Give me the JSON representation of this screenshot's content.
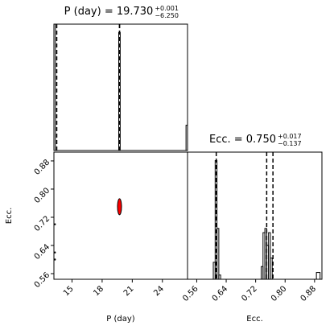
{
  "chart_data": [
    {
      "type": "histogram",
      "title": "P (day) = 19.730",
      "title_sup": "+0.001",
      "title_sub": "−6.250",
      "bins": [
        13.2,
        13.35,
        19.65,
        19.8,
        26.35,
        26.5
      ],
      "counts": [
        150,
        0,
        140,
        0,
        30
      ],
      "xlim": [
        13.2,
        26.5
      ],
      "ylim": [
        0,
        150
      ],
      "quantiles": [
        13.48,
        19.73,
        19.731
      ],
      "color": "#000000"
    },
    {
      "type": "scatter",
      "x_label": "P (day)",
      "y_label": "Ecc.",
      "x": [
        13.3,
        13.3,
        13.3,
        19.73,
        19.73,
        19.73
      ],
      "y": [
        0.6,
        0.62,
        0.7,
        0.74,
        0.75,
        0.76
      ],
      "peak": {
        "x": 19.73,
        "y": 0.75,
        "color": "#ff0000"
      },
      "color": "#000000",
      "xlim": [
        13.2,
        26.5
      ],
      "ylim": [
        0.544,
        0.905
      ],
      "xticks": [
        15,
        18,
        21,
        24
      ],
      "yticks": [
        0.56,
        0.64,
        0.72,
        {
          "value": 0.8,
          "label": "0.80"
        },
        0.88
      ]
    },
    {
      "type": "histogram",
      "title": "Ecc. = 0.750",
      "title_sup": "+0.017",
      "title_sub": "−0.137",
      "x_label": "Ecc.",
      "bins": [
        0.535,
        0.605,
        0.61,
        0.615,
        0.62,
        0.625,
        0.735,
        0.74,
        0.745,
        0.75,
        0.755,
        0.76,
        0.765,
        0.77,
        0.885,
        0.895,
        0.9
      ],
      "counts": [
        0,
        20,
        140,
        60,
        5,
        0,
        15,
        55,
        60,
        40,
        55,
        25,
        0,
        0,
        8,
        0
      ],
      "xlim": [
        0.535,
        0.9
      ],
      "ylim": [
        0,
        150
      ],
      "quantiles": [
        0.613,
        0.75,
        0.767
      ],
      "color": "#000000",
      "xticks": [
        0.56,
        0.64,
        0.72,
        {
          "value": 0.8,
          "label": "0.80"
        },
        0.88
      ]
    }
  ]
}
